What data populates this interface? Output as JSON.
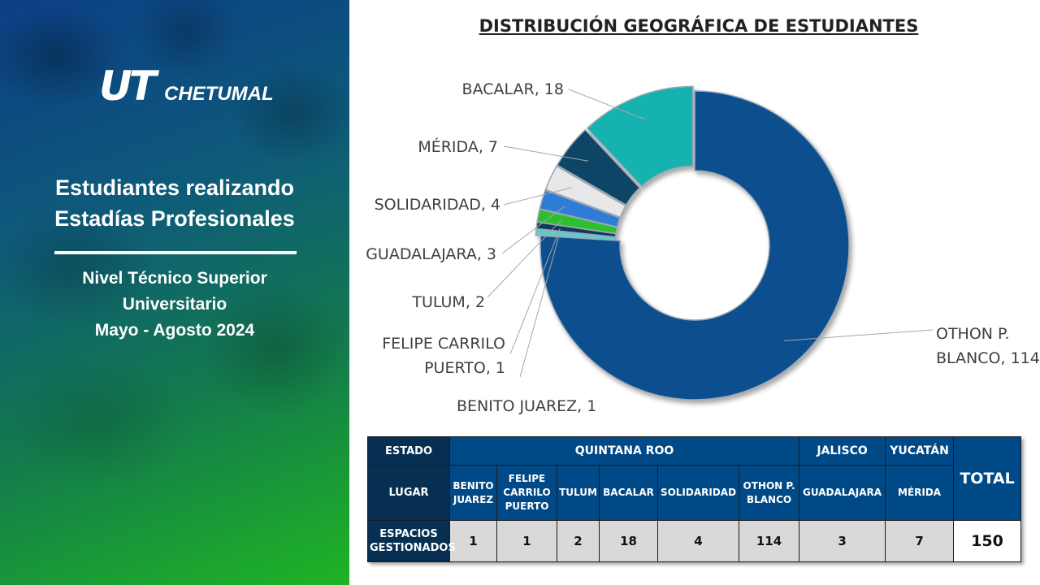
{
  "panel": {
    "logo_mark": "UT",
    "logo_name": "CHETUMAL",
    "title_line1": "Estudiantes realizando",
    "title_line2": "Estadías Profesionales",
    "subtitle_line1": "Nivel Técnico Superior",
    "subtitle_line2": "Universitario",
    "subtitle_line3": "Mayo - Agosto 2024"
  },
  "chart_data": {
    "type": "pie",
    "title": "DISTRIBUCIÓN GEOGRÁFICA DE ESTUDIANTES",
    "slices": [
      {
        "name": "OTHON P. BLANCO",
        "label_lines": [
          "OTHON P.",
          "BLANCO, 114"
        ],
        "value": 114,
        "color": "#0a4f8e"
      },
      {
        "name": "BENITO JUAREZ",
        "label_lines": [
          "BENITO JUAREZ, 1"
        ],
        "value": 1,
        "color": "#63c8cf"
      },
      {
        "name": "FELIPE CARRILO PUERTO",
        "label_lines": [
          "FELIPE CARRILO",
          "PUERTO, 1"
        ],
        "value": 1,
        "color": "#0c3a5a"
      },
      {
        "name": "TULUM",
        "label_lines": [
          "TULUM, 2"
        ],
        "value": 2,
        "color": "#2fbf2f"
      },
      {
        "name": "GUADALAJARA",
        "label_lines": [
          "GUADALAJARA, 3"
        ],
        "value": 3,
        "color": "#2e7bd6"
      },
      {
        "name": "SOLIDARIDAD",
        "label_lines": [
          "SOLIDARIDAD, 4"
        ],
        "value": 4,
        "color": "#e8e8e8"
      },
      {
        "name": "MÉRIDA",
        "label_lines": [
          "MÉRIDA, 7"
        ],
        "value": 7,
        "color": "#0d4466"
      },
      {
        "name": "BACALAR",
        "label_lines": [
          "BACALAR, 18"
        ],
        "value": 18,
        "color": "#15b2b0"
      }
    ]
  },
  "table": {
    "estado_label": "ESTADO",
    "lugar_label": "LUGAR",
    "espacios_label_line1": "ESPACIOS",
    "espacios_label_line2": "GESTIONADOS",
    "states": {
      "qroo": "QUINTANA ROO",
      "jalisco": "JALISCO",
      "yucatan": "YUCATÁN"
    },
    "total_label": "TOTAL",
    "places": [
      {
        "lines": [
          "BENITO",
          "JUAREZ"
        ],
        "value": "1"
      },
      {
        "lines": [
          "FELIPE",
          "CARRILO",
          "PUERTO"
        ],
        "value": "1"
      },
      {
        "lines": [
          "TULUM"
        ],
        "value": "2"
      },
      {
        "lines": [
          "BACALAR"
        ],
        "value": "18"
      },
      {
        "lines": [
          "SOLIDARIDAD"
        ],
        "value": "4"
      },
      {
        "lines": [
          "OTHON P.",
          "BLANCO"
        ],
        "value": "114"
      },
      {
        "lines": [
          "GUADALAJARA"
        ],
        "value": "3"
      },
      {
        "lines": [
          "MÉRIDA"
        ],
        "value": "7"
      }
    ],
    "total_value": "150"
  }
}
